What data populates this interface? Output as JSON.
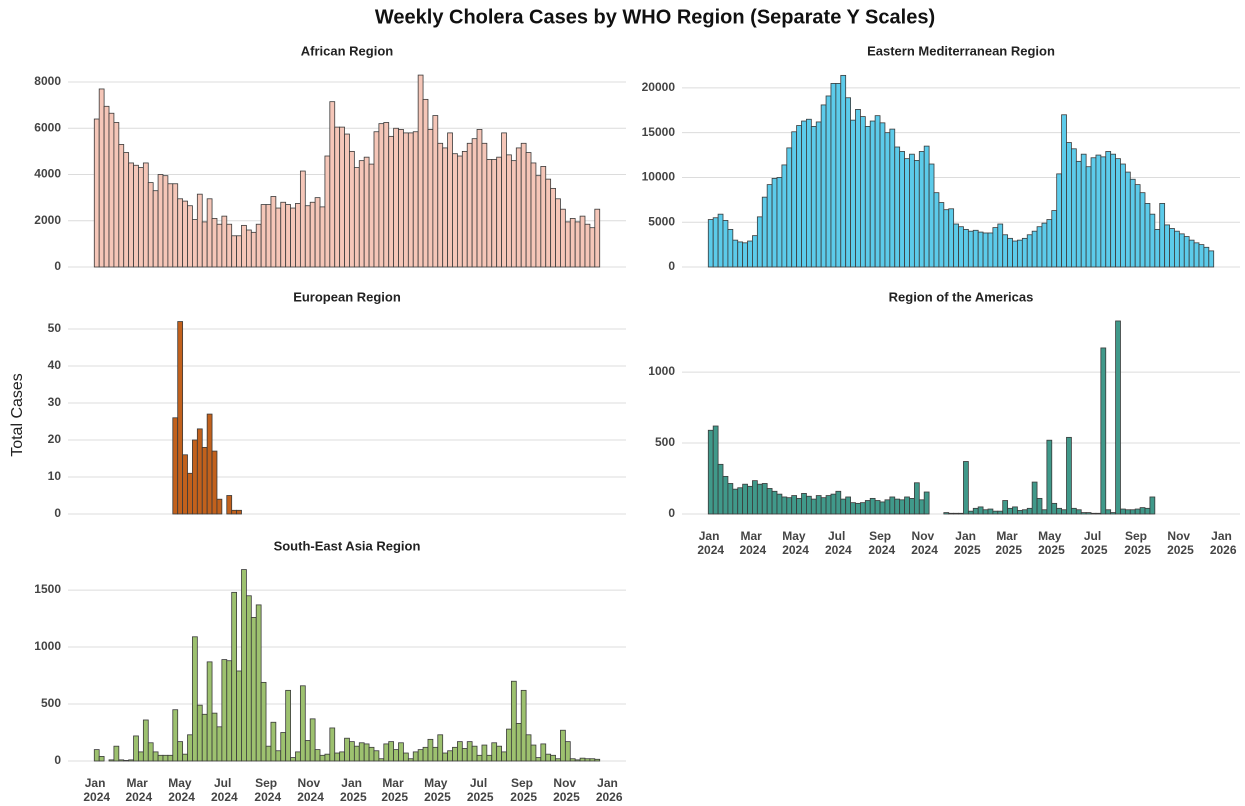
{
  "chart_data": {
    "type": "bar",
    "title": "Weekly Cholera Cases by WHO Region (Separate Y Scales)",
    "ylabel": "Total Cases",
    "grid": true,
    "xlim": [
      "2023-11-21",
      "2026-01-25"
    ],
    "xticks": [
      {
        "value": "2024-01-01",
        "label": "Jan 2024"
      },
      {
        "value": "2024-03-01",
        "label": "Mar 2024"
      },
      {
        "value": "2024-05-01",
        "label": "May 2024"
      },
      {
        "value": "2024-07-01",
        "label": "Jul 2024"
      },
      {
        "value": "2024-09-01",
        "label": "Sep 2024"
      },
      {
        "value": "2024-11-01",
        "label": "Nov 2024"
      },
      {
        "value": "2025-01-01",
        "label": "Jan 2025"
      },
      {
        "value": "2025-03-01",
        "label": "Mar 2025"
      },
      {
        "value": "2025-05-01",
        "label": "May 2025"
      },
      {
        "value": "2025-07-01",
        "label": "Jul 2025"
      },
      {
        "value": "2025-09-01",
        "label": "Sep 2025"
      },
      {
        "value": "2025-11-01",
        "label": "Nov 2025"
      },
      {
        "value": "2026-01-01",
        "label": "Jan 2026"
      }
    ],
    "x": [
      "2024-01-01",
      "2024-01-08",
      "2024-01-15",
      "2024-01-22",
      "2024-01-29",
      "2024-02-05",
      "2024-02-12",
      "2024-02-19",
      "2024-02-26",
      "2024-03-04",
      "2024-03-11",
      "2024-03-18",
      "2024-03-25",
      "2024-04-01",
      "2024-04-08",
      "2024-04-15",
      "2024-04-22",
      "2024-04-29",
      "2024-05-06",
      "2024-05-13",
      "2024-05-20",
      "2024-05-27",
      "2024-06-03",
      "2024-06-10",
      "2024-06-17",
      "2024-06-24",
      "2024-07-01",
      "2024-07-08",
      "2024-07-15",
      "2024-07-22",
      "2024-07-29",
      "2024-08-05",
      "2024-08-12",
      "2024-08-19",
      "2024-08-26",
      "2024-09-02",
      "2024-09-09",
      "2024-09-16",
      "2024-09-23",
      "2024-09-30",
      "2024-10-07",
      "2024-10-14",
      "2024-10-21",
      "2024-10-28",
      "2024-11-04",
      "2024-11-11",
      "2024-11-18",
      "2024-11-25",
      "2024-12-02",
      "2024-12-09",
      "2024-12-16",
      "2024-12-23",
      "2024-12-30",
      "2025-01-06",
      "2025-01-13",
      "2025-01-20",
      "2025-01-27",
      "2025-02-03",
      "2025-02-10",
      "2025-02-17",
      "2025-02-24",
      "2025-03-03",
      "2025-03-10",
      "2025-03-17",
      "2025-03-24",
      "2025-03-31",
      "2025-04-07",
      "2025-04-14",
      "2025-04-21",
      "2025-04-28",
      "2025-05-05",
      "2025-05-12",
      "2025-05-19",
      "2025-05-26",
      "2025-06-02",
      "2025-06-09",
      "2025-06-16",
      "2025-06-23",
      "2025-06-30",
      "2025-07-07",
      "2025-07-14",
      "2025-07-21",
      "2025-07-28",
      "2025-08-04",
      "2025-08-11",
      "2025-08-18",
      "2025-08-25",
      "2025-09-01",
      "2025-09-08",
      "2025-09-15",
      "2025-09-22",
      "2025-09-29",
      "2025-10-06",
      "2025-10-13",
      "2025-10-20",
      "2025-10-27",
      "2025-11-03",
      "2025-11-10",
      "2025-11-17",
      "2025-11-24",
      "2025-12-01",
      "2025-12-08",
      "2025-12-15"
    ],
    "series": [
      {
        "name": "African Region",
        "color": "#f5c6b8",
        "ylim": [
          0,
          8520
        ],
        "yticks": [
          0,
          2000,
          4000,
          6000,
          8000
        ],
        "values": [
          6400,
          7700,
          6950,
          6650,
          6250,
          5300,
          4950,
          4500,
          4400,
          4300,
          4500,
          3650,
          3300,
          4000,
          3950,
          3600,
          3600,
          2950,
          2850,
          2650,
          2050,
          3150,
          1950,
          2950,
          2100,
          1850,
          2200,
          1850,
          1350,
          1350,
          1800,
          1600,
          1500,
          1850,
          2700,
          2700,
          3050,
          2550,
          2800,
          2700,
          2550,
          2750,
          4150,
          2650,
          2800,
          3000,
          2600,
          4800,
          7150,
          6050,
          6050,
          5750,
          5000,
          4300,
          4600,
          4750,
          4450,
          5850,
          6200,
          6250,
          5650,
          6000,
          5950,
          5800,
          5800,
          5850,
          8300,
          7250,
          5950,
          6550,
          5350,
          5150,
          5800,
          4900,
          4800,
          5000,
          5350,
          5550,
          5950,
          5350,
          4650,
          4650,
          4750,
          5800,
          4850,
          4600,
          5150,
          5350,
          4950,
          4500,
          3950,
          4350,
          3800,
          3400,
          2950,
          2500,
          1950,
          2100,
          1950,
          2200,
          1850,
          1700,
          2500
        ]
      },
      {
        "name": "Eastern Mediterranean Region",
        "color": "#5ccbea",
        "ylim": [
          0,
          22000
        ],
        "yticks": [
          0,
          5000,
          10000,
          15000,
          20000
        ],
        "values": [
          5300,
          5500,
          5900,
          5200,
          4200,
          3000,
          2800,
          2700,
          2900,
          3500,
          5600,
          7800,
          9200,
          9900,
          10000,
          11400,
          13300,
          15100,
          15800,
          16300,
          16500,
          15700,
          16200,
          18100,
          19100,
          20500,
          20500,
          21400,
          18900,
          16400,
          17600,
          16800,
          15700,
          16300,
          16900,
          16100,
          15000,
          15400,
          13400,
          12900,
          12100,
          12600,
          11900,
          12900,
          13500,
          11500,
          8300,
          7200,
          6400,
          6500,
          4800,
          4500,
          4200,
          4000,
          4100,
          3900,
          3800,
          3800,
          4400,
          4800,
          3600,
          3200,
          2900,
          3000,
          3200,
          3600,
          4000,
          4500,
          4900,
          5300,
          6300,
          10400,
          17000,
          13900,
          13200,
          11800,
          12600,
          11200,
          12200,
          12500,
          12300,
          12900,
          12600,
          12100,
          11500,
          10600,
          9800,
          9200,
          8300,
          7100,
          5900,
          4200,
          7100,
          4700,
          4300,
          4000,
          3700,
          3400,
          3000,
          2700,
          2500,
          2200,
          1800
        ]
      },
      {
        "name": "European Region",
        "color": "#c2611c",
        "ylim": [
          0,
          53.5
        ],
        "yticks": [
          0,
          10,
          20,
          30,
          40,
          50
        ],
        "values": [
          null,
          null,
          null,
          null,
          null,
          null,
          null,
          null,
          null,
          null,
          null,
          null,
          null,
          null,
          null,
          null,
          26,
          52,
          16,
          11,
          20,
          23,
          18,
          27,
          17,
          4,
          null,
          5,
          1,
          1,
          null,
          null,
          null,
          null,
          null,
          null,
          null,
          null,
          null,
          null,
          null,
          null,
          null,
          null,
          null,
          null,
          null,
          null,
          null,
          null,
          null,
          null,
          null,
          null,
          null,
          null,
          null,
          null,
          null,
          null,
          null,
          null,
          null,
          null,
          null,
          null,
          null,
          null,
          null,
          null,
          null,
          null,
          null,
          null,
          null,
          null,
          null,
          null,
          null,
          null,
          null,
          null,
          null,
          null,
          null,
          null,
          null,
          null,
          null,
          null,
          null,
          null,
          null,
          null,
          null,
          null,
          null,
          null,
          null,
          null,
          null,
          null,
          null
        ]
      },
      {
        "name": "Region of the Americas",
        "color": "#40998a",
        "ylim": [
          0,
          1395
        ],
        "yticks": [
          0,
          500,
          1000
        ],
        "values": [
          590,
          620,
          350,
          265,
          215,
          175,
          185,
          210,
          195,
          235,
          210,
          215,
          180,
          160,
          140,
          120,
          115,
          130,
          110,
          145,
          125,
          105,
          130,
          115,
          130,
          140,
          160,
          105,
          120,
          80,
          75,
          80,
          95,
          110,
          95,
          85,
          100,
          120,
          105,
          100,
          120,
          110,
          220,
          100,
          155,
          null,
          null,
          null,
          10,
          5,
          5,
          5,
          370,
          20,
          40,
          50,
          30,
          35,
          20,
          20,
          95,
          40,
          50,
          25,
          30,
          40,
          225,
          110,
          30,
          520,
          75,
          40,
          30,
          540,
          40,
          30,
          10,
          10,
          5,
          5,
          1170,
          30,
          10,
          1360,
          35,
          30,
          30,
          35,
          45,
          40,
          120,
          null,
          null,
          null,
          null,
          null,
          null,
          null,
          null,
          null,
          null,
          null,
          null
        ]
      },
      {
        "name": "South-East Asia Region",
        "color": "#9dc16f",
        "ylim": [
          0,
          1720
        ],
        "yticks": [
          0,
          500,
          1000,
          1500
        ],
        "values": [
          100,
          40,
          0,
          10,
          130,
          10,
          5,
          10,
          220,
          80,
          360,
          160,
          80,
          50,
          50,
          50,
          450,
          170,
          60,
          230,
          1090,
          490,
          410,
          870,
          420,
          300,
          890,
          880,
          1480,
          790,
          1680,
          1450,
          1260,
          1370,
          690,
          130,
          340,
          90,
          250,
          620,
          30,
          80,
          660,
          180,
          370,
          100,
          50,
          60,
          290,
          70,
          80,
          200,
          170,
          130,
          160,
          150,
          120,
          90,
          20,
          150,
          170,
          100,
          160,
          70,
          20,
          80,
          100,
          120,
          190,
          120,
          230,
          70,
          90,
          120,
          170,
          110,
          170,
          130,
          50,
          140,
          50,
          160,
          130,
          80,
          280,
          700,
          330,
          620,
          230,
          140,
          30,
          150,
          60,
          50,
          20,
          270,
          170,
          20,
          10,
          25,
          20,
          20,
          15
        ]
      }
    ]
  }
}
